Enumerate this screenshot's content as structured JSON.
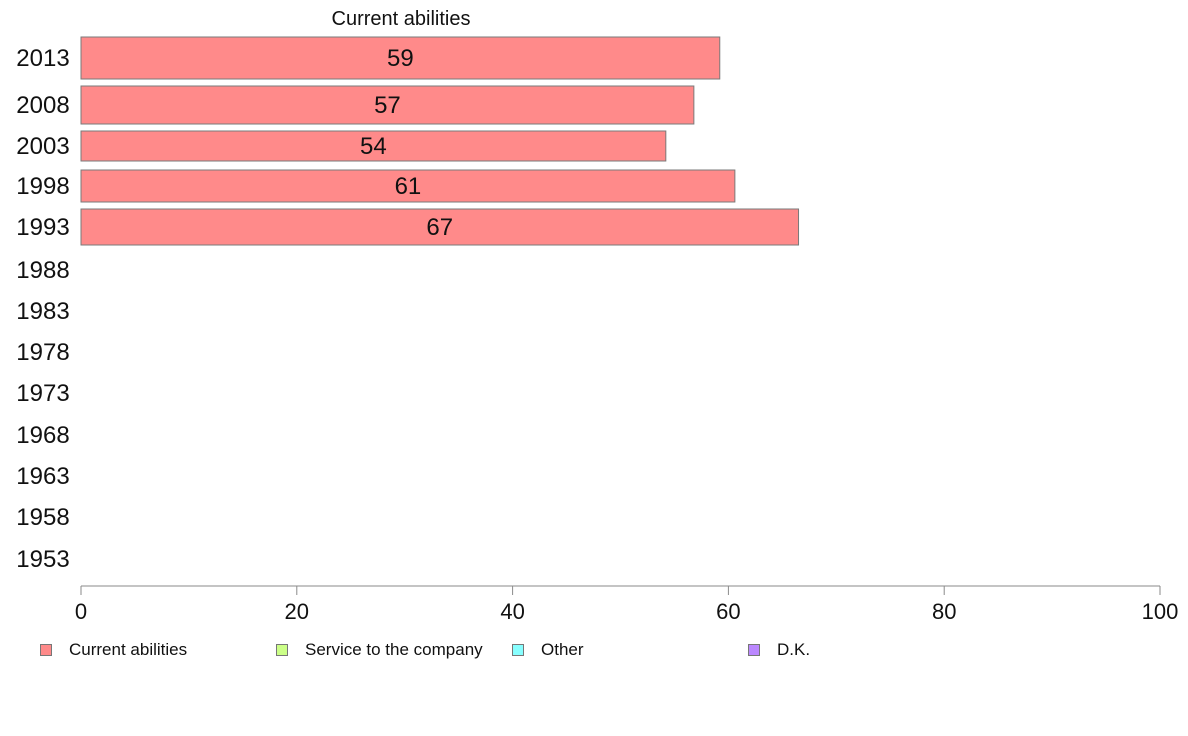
{
  "chart_data": {
    "type": "bar",
    "orientation": "horizontal",
    "stacked": true,
    "title": "Current abilities",
    "categories": [
      "2013",
      "2008",
      "2003",
      "1998",
      "1993",
      "1988",
      "1983",
      "1978",
      "1973",
      "1968",
      "1963",
      "1958",
      "1953"
    ],
    "series": [
      {
        "name": "Current abilities",
        "color": "#ff8a8a",
        "values": [
          59.2,
          56.8,
          54.2,
          60.6,
          66.5,
          null,
          null,
          null,
          null,
          null,
          null,
          null,
          null
        ],
        "labels": [
          "59",
          "57",
          "54",
          "61",
          "67",
          "",
          "",
          "",
          "",
          "",
          "",
          "",
          ""
        ]
      },
      {
        "name": "Service to the company",
        "color": "#ccff88",
        "values": [
          null,
          null,
          null,
          null,
          null,
          null,
          null,
          null,
          null,
          null,
          null,
          null,
          null
        ]
      },
      {
        "name": "Other",
        "color": "#88ffff",
        "values": [
          null,
          null,
          null,
          null,
          null,
          null,
          null,
          null,
          null,
          null,
          null,
          null,
          null
        ]
      },
      {
        "name": "D.K.",
        "color": "#bb88ff",
        "values": [
          null,
          null,
          null,
          null,
          null,
          null,
          null,
          null,
          null,
          null,
          null,
          null,
          null
        ]
      }
    ],
    "xlim": [
      0,
      100
    ],
    "xticks": [
      "0",
      "20",
      "40",
      "60",
      "80",
      "100"
    ],
    "grid": false,
    "legend_position": "bottom"
  }
}
